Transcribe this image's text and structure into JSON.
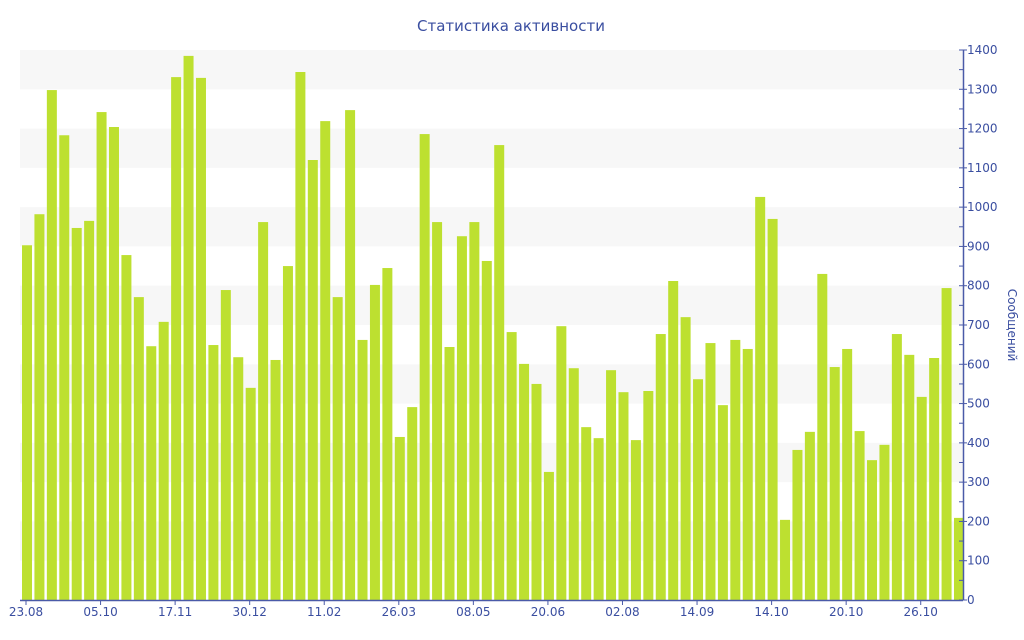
{
  "chart_data": {
    "type": "bar",
    "title": "Статистика активности",
    "xlabel": "",
    "ylabel": "Сообщений",
    "ylim": [
      0,
      1400
    ],
    "yticks": [
      0,
      100,
      200,
      300,
      400,
      500,
      600,
      700,
      800,
      900,
      1000,
      1100,
      1200,
      1300,
      1400
    ],
    "y_axis_position": "right",
    "grid": "alternating horizontal bands",
    "legend": "none",
    "x_tick_labels": [
      {
        "bar_index": 0,
        "label": "23.08"
      },
      {
        "bar_index": 6,
        "label": "05.10"
      },
      {
        "bar_index": 12,
        "label": "17.11"
      },
      {
        "bar_index": 18,
        "label": "30.12"
      },
      {
        "bar_index": 24,
        "label": "11.02"
      },
      {
        "bar_index": 30,
        "label": "26.03"
      },
      {
        "bar_index": 36,
        "label": "08.05"
      },
      {
        "bar_index": 42,
        "label": "20.06"
      },
      {
        "bar_index": 48,
        "label": "02.08"
      },
      {
        "bar_index": 54,
        "label": "14.09"
      },
      {
        "bar_index": 60,
        "label": "14.10"
      },
      {
        "bar_index": 66,
        "label": "20.10"
      },
      {
        "bar_index": 72,
        "label": "26.10"
      }
    ],
    "values": [
      903,
      982,
      1298,
      1183,
      947,
      965,
      1242,
      1204,
      878,
      771,
      646,
      708,
      1331,
      1385,
      1329,
      649,
      789,
      618,
      540,
      962,
      611,
      850,
      1344,
      1120,
      1219,
      771,
      1247,
      662,
      802,
      845,
      415,
      491,
      1186,
      962,
      644,
      926,
      962,
      863,
      1158,
      682,
      601,
      550,
      326,
      697,
      590,
      440,
      412,
      585,
      529,
      407,
      532,
      677,
      812,
      720,
      562,
      654,
      496,
      662,
      639,
      1026,
      970,
      204,
      382,
      428,
      830,
      593,
      639,
      430,
      356,
      395,
      677,
      624,
      517,
      616,
      794,
      209
    ],
    "colors": {
      "bar": "#bde030",
      "axis": "#4a5aa8",
      "band": "#f7f7f7",
      "text": "#3a4ea0"
    }
  }
}
